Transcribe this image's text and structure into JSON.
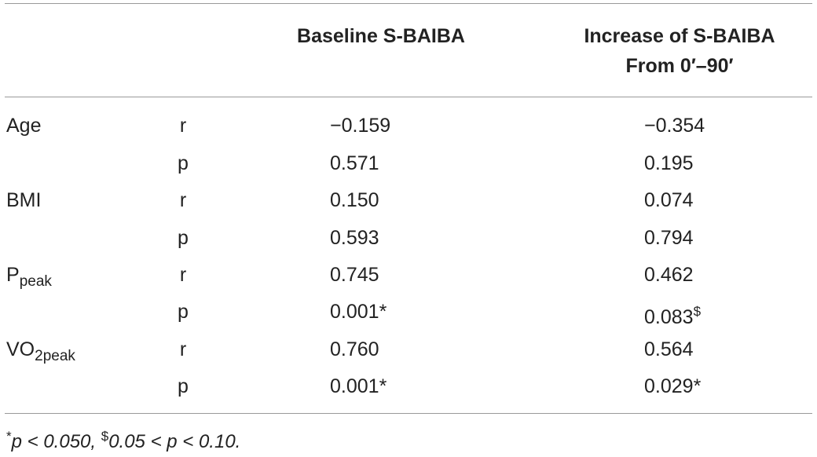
{
  "header": {
    "col1": "Baseline S-BAIBA",
    "col2_line1": "Increase of S-BAIBA",
    "col2_line2": "From 0′–90′"
  },
  "rows": [
    {
      "variable": "Age",
      "variable_sub": "",
      "stat": "r",
      "baseline": "−0.159",
      "baseline_mark": "",
      "increase": "−0.354",
      "increase_mark": ""
    },
    {
      "variable": "",
      "variable_sub": "",
      "stat": "p",
      "baseline": "0.571",
      "baseline_mark": "",
      "increase": "0.195",
      "increase_mark": ""
    },
    {
      "variable": "BMI",
      "variable_sub": "",
      "stat": "r",
      "baseline": "0.150",
      "baseline_mark": "",
      "increase": "0.074",
      "increase_mark": ""
    },
    {
      "variable": "",
      "variable_sub": "",
      "stat": "p",
      "baseline": "0.593",
      "baseline_mark": "",
      "increase": "0.794",
      "increase_mark": ""
    },
    {
      "variable": "P",
      "variable_sub": "peak",
      "stat": "r",
      "baseline": "0.745",
      "baseline_mark": "",
      "increase": "0.462",
      "increase_mark": ""
    },
    {
      "variable": "",
      "variable_sub": "",
      "stat": "p",
      "baseline": "0.001",
      "baseline_mark": "*",
      "increase": "0.083",
      "increase_mark": "$"
    },
    {
      "variable": "VO",
      "variable_sub": "2peak",
      "stat": "r",
      "baseline": "0.760",
      "baseline_mark": "",
      "increase": "0.564",
      "increase_mark": ""
    },
    {
      "variable": "",
      "variable_sub": "",
      "stat": "p",
      "baseline": "0.001",
      "baseline_mark": "*",
      "increase": "0.029",
      "increase_mark": "*"
    }
  ],
  "footnote": {
    "mark1": "*",
    "text1": "p < 0.050, ",
    "mark2": "$",
    "text2": "0.05 < p < 0.10."
  }
}
